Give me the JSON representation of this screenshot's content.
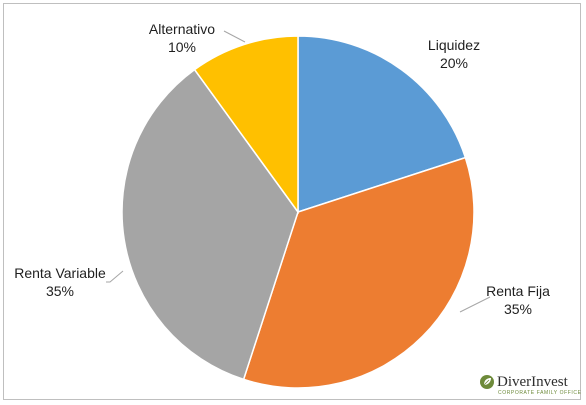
{
  "chart_data": {
    "type": "pie",
    "categories": [
      "Liquidez",
      "Renta Fija",
      "Renta Variable",
      "Alternativo"
    ],
    "values": [
      20,
      35,
      35,
      10
    ],
    "value_labels": [
      "20%",
      "35%",
      "35%",
      "10%"
    ],
    "colors": [
      "#5b9bd5",
      "#ed7d31",
      "#a5a5a5",
      "#ffc000"
    ],
    "start_angle_deg": 0,
    "direction": "clockwise"
  },
  "logo": {
    "name": "DiverInvest",
    "tagline": "CORPORATE FAMILY OFFICE",
    "icon": "leaf-icon",
    "accent": "#6d8a3a"
  }
}
